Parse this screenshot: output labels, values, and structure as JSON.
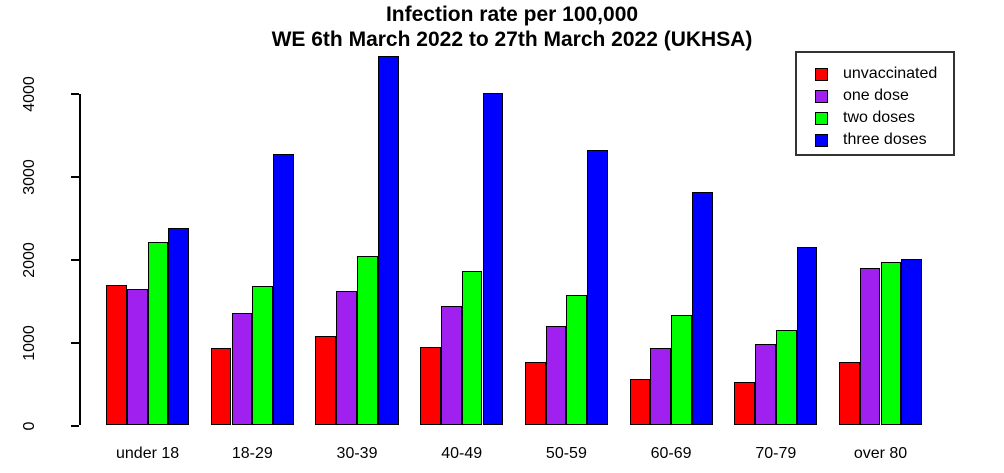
{
  "chart_data": {
    "type": "bar",
    "title": "Infection rate per 100,000",
    "subtitle": "WE 6th March 2022 to 27th March 2022 (UKHSA)",
    "categories": [
      "under 18",
      "18-29",
      "30-39",
      "40-49",
      "50-59",
      "60-69",
      "70-79",
      "over 80"
    ],
    "series": [
      {
        "name": "unvaccinated",
        "color": "#FF0000",
        "values": [
          1700,
          940,
          1080,
          950,
          770,
          560,
          520,
          770
        ]
      },
      {
        "name": "one dose",
        "color": "#A020F0",
        "values": [
          1650,
          1360,
          1630,
          1440,
          1200,
          940,
          990,
          1900
        ]
      },
      {
        "name": "two doses",
        "color": "#00FF00",
        "values": [
          2220,
          1690,
          2050,
          1870,
          1580,
          1330,
          1150,
          1980
        ]
      },
      {
        "name": "three doses",
        "color": "#0000FF",
        "values": [
          2390,
          3280,
          4460,
          4020,
          3330,
          2820,
          2160,
          2010
        ]
      }
    ],
    "xlabel": "",
    "ylabel": "",
    "ylim": [
      0,
      4000
    ],
    "yticks": [
      "0",
      "1000",
      "2000",
      "3000",
      "4000"
    ],
    "grid": false,
    "legend_position": "top-right",
    "bar_border_color": "#000000",
    "axis_color": "#000000",
    "background_color": "#FFFFFF"
  }
}
